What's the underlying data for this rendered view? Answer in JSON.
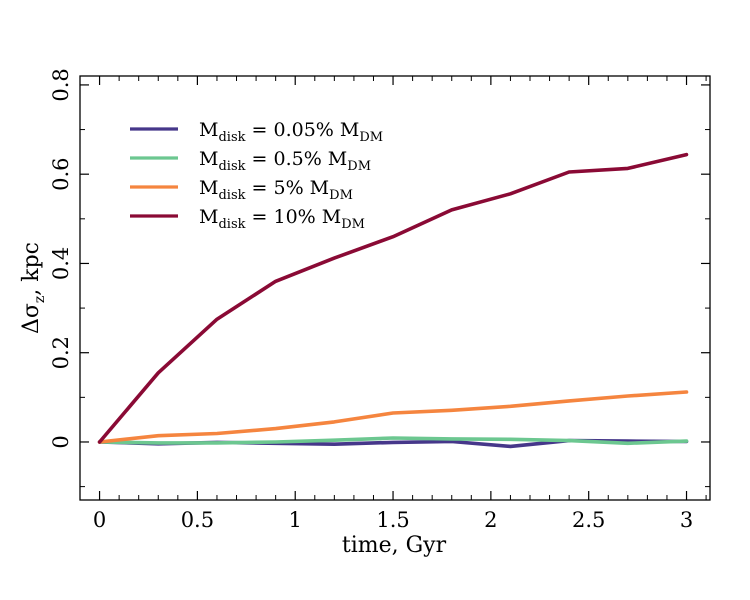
{
  "chart_data": {
    "type": "line",
    "title": "",
    "xlabel": "time, Gyr",
    "ylabel_prefix": "Δσ",
    "ylabel_subscript": "z",
    "ylabel_suffix": ", kpc",
    "xlim": [
      -0.1,
      3.12
    ],
    "ylim": [
      -0.13,
      0.82
    ],
    "xticks": [
      0,
      0.5,
      1,
      1.5,
      2,
      2.5,
      3
    ],
    "xtick_labels": [
      "0",
      "0.5",
      "1",
      "1.5",
      "2",
      "2.5",
      "3"
    ],
    "yticks": [
      0,
      0.2,
      0.4,
      0.6,
      0.8
    ],
    "ytick_labels": [
      "0",
      "0.2",
      "0.4",
      "0.6",
      "0.8"
    ],
    "legend_position": "top-left",
    "x": [
      0,
      0.3,
      0.6,
      0.9,
      1.2,
      1.5,
      1.8,
      2.1,
      2.4,
      2.7,
      3.0
    ],
    "series": [
      {
        "name": "Mdisk = 0.05% MDM",
        "label_main": "M",
        "label_sub": "disk",
        "label_mid": " = 0.05% M",
        "label_sub2": "DM",
        "color": "#46378a",
        "values": [
          0.0,
          -0.004,
          -0.001,
          -0.003,
          -0.005,
          -0.001,
          0.001,
          -0.01,
          0.003,
          0.002,
          0.001
        ]
      },
      {
        "name": "Mdisk = 0.5% MDM",
        "label_main": "M",
        "label_sub": "disk",
        "label_mid": " = 0.5% M",
        "label_sub2": "DM",
        "color": "#6cc790",
        "values": [
          0.0,
          -0.002,
          -0.002,
          0.0,
          0.004,
          0.009,
          0.007,
          0.006,
          0.003,
          -0.003,
          0.002
        ]
      },
      {
        "name": "Mdisk = 5% MDM",
        "label_main": "M",
        "label_sub": "disk",
        "label_mid": " = 5% M",
        "label_sub2": "DM",
        "color": "#f5853f",
        "values": [
          0.0,
          0.014,
          0.019,
          0.03,
          0.045,
          0.065,
          0.071,
          0.08,
          0.092,
          0.103,
          0.112
        ]
      },
      {
        "name": "Mdisk = 10% MDM",
        "label_main": "M",
        "label_sub": "disk",
        "label_mid": " = 10% M",
        "label_sub2": "DM",
        "color": "#8a0a35",
        "values": [
          0.0,
          0.155,
          0.275,
          0.36,
          0.412,
          0.46,
          0.52,
          0.556,
          0.605,
          0.613,
          0.644
        ]
      }
    ]
  }
}
